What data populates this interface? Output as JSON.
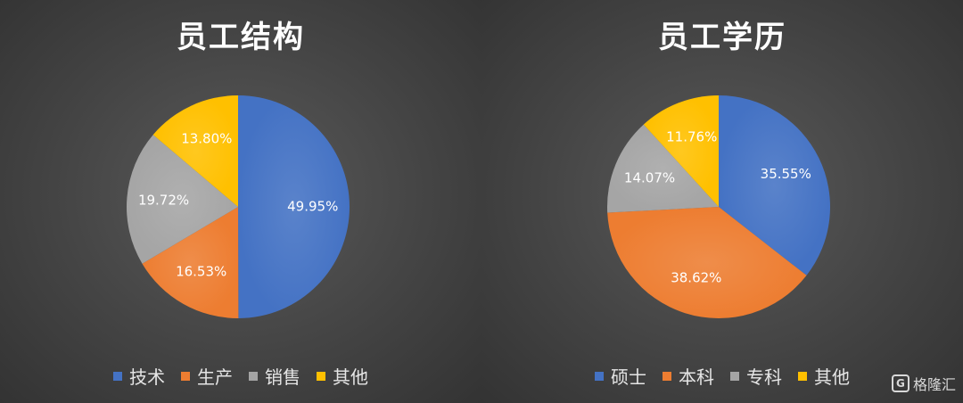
{
  "chart_data": [
    {
      "type": "pie",
      "title": "员工结构",
      "categories": [
        "技术",
        "生产",
        "销售",
        "其他"
      ],
      "values": [
        49.95,
        16.53,
        19.72,
        13.8
      ],
      "labels": [
        "49.95%",
        "16.53%",
        "19.72%",
        "13.80%"
      ],
      "colors": [
        "#4472C4",
        "#ED7D31",
        "#A5A5A5",
        "#FFC000"
      ],
      "legend_position": "bottom"
    },
    {
      "type": "pie",
      "title": "员工学历",
      "categories": [
        "硕士",
        "本科",
        "专科",
        "其他"
      ],
      "values": [
        35.55,
        38.62,
        14.07,
        11.76
      ],
      "labels": [
        "35.55%",
        "38.62%",
        "14.07%",
        "11.76%"
      ],
      "colors": [
        "#4472C4",
        "#ED7D31",
        "#A5A5A5",
        "#FFC000"
      ],
      "legend_position": "bottom"
    }
  ],
  "watermark": {
    "logo_letter": "G",
    "text": "格隆汇"
  }
}
